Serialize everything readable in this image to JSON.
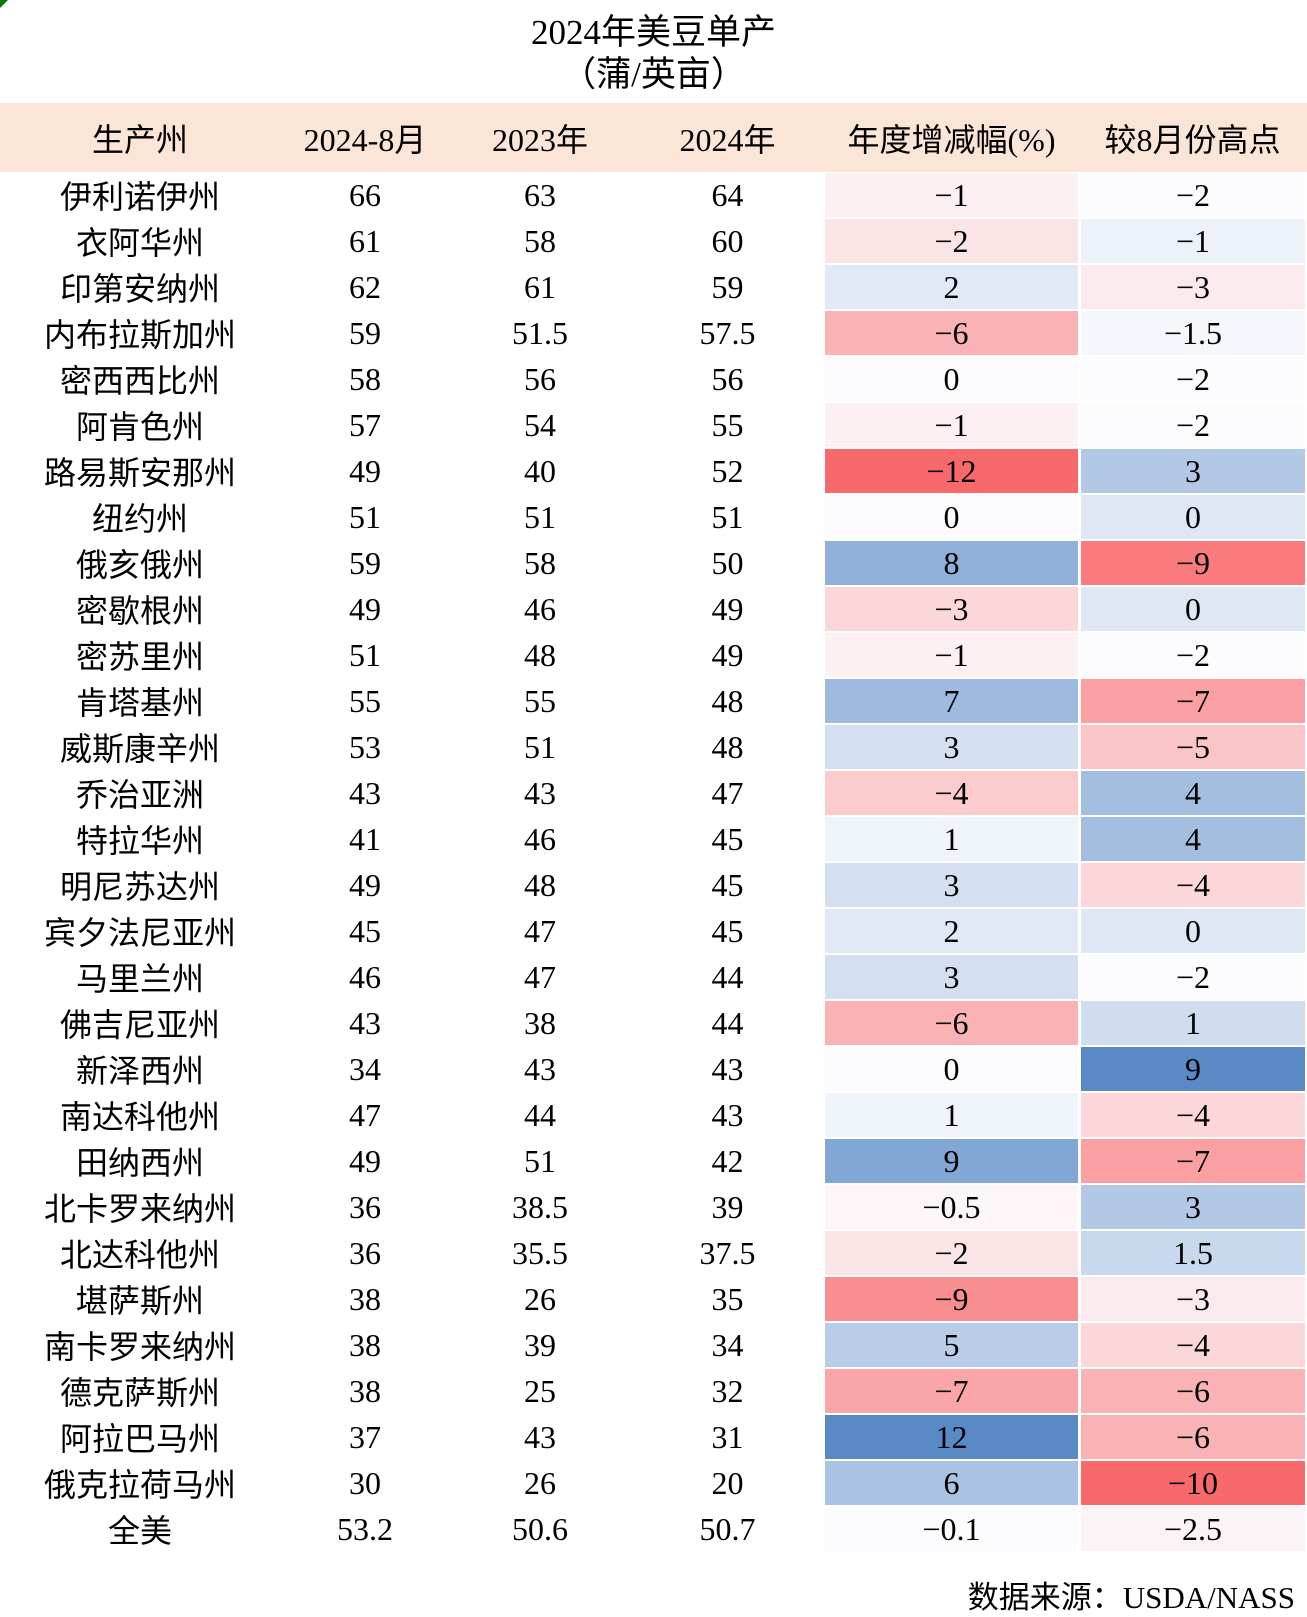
{
  "colors": {
    "header_bg": "#FBE5D6",
    "corner_marker": "#007B00",
    "text": "#000000",
    "scale_negative_max": "#F8696B",
    "scale_midpoint": "#FCFCFF",
    "scale_positive_max": "#5A8AC6"
  },
  "chart_data": {
    "type": "table",
    "title": "2024年美豆单产",
    "subtitle": "（蒲/英亩）",
    "columns": [
      "生产州",
      "2024-8月",
      "2023年",
      "2024年",
      "年度增减幅(%)",
      "较8月份高点"
    ],
    "rows": [
      {
        "state": "伊利诺伊州",
        "aug_2024": "66",
        "y2023": "63",
        "y2024": "64",
        "yoy_pct": "-1",
        "yoy_bg": "#FCF0F3",
        "vs_aug_high": "-2",
        "vs_bg": "#FCFCFF"
      },
      {
        "state": "衣阿华州",
        "aug_2024": "61",
        "y2023": "58",
        "y2024": "60",
        "yoy_pct": "-2",
        "yoy_bg": "#FBE4E6",
        "vs_aug_high": "-1",
        "vs_bg": "#EDF2FA"
      },
      {
        "state": "印第安纳州",
        "aug_2024": "62",
        "y2023": "61",
        "y2024": "59",
        "yoy_pct": "2",
        "yoy_bg": "#E1E9F6",
        "vs_aug_high": "-3",
        "vs_bg": "#FBEAED"
      },
      {
        "state": "内布拉斯加州",
        "aug_2024": "59",
        "y2023": "51.5",
        "y2024": "57.5",
        "yoy_pct": "-6",
        "yoy_bg": "#FAB3B5",
        "vs_aug_high": "-1.5",
        "vs_bg": "#F5F7FC"
      },
      {
        "state": "密西西比州",
        "aug_2024": "58",
        "y2023": "56",
        "y2024": "56",
        "yoy_pct": "0",
        "yoy_bg": "#FCFCFF",
        "vs_aug_high": "-2",
        "vs_bg": "#FCFCFF"
      },
      {
        "state": "阿肯色州",
        "aug_2024": "57",
        "y2023": "54",
        "y2024": "55",
        "yoy_pct": "-1",
        "yoy_bg": "#FCF0F3",
        "vs_aug_high": "-2",
        "vs_bg": "#FCFCFF"
      },
      {
        "state": "路易斯安那州",
        "aug_2024": "49",
        "y2023": "40",
        "y2024": "52",
        "yoy_pct": "-12",
        "yoy_bg": "#F8696B",
        "vs_aug_high": "3",
        "vs_bg": "#B2C8E5"
      },
      {
        "state": "纽约州",
        "aug_2024": "51",
        "y2023": "51",
        "y2024": "51",
        "yoy_pct": "0",
        "yoy_bg": "#FCFCFF",
        "vs_aug_high": "0",
        "vs_bg": "#DFE7F5"
      },
      {
        "state": "俄亥俄州",
        "aug_2024": "59",
        "y2023": "58",
        "y2024": "50",
        "yoy_pct": "8",
        "yoy_bg": "#90B0D9",
        "vs_aug_high": "-9",
        "vs_bg": "#F97B7E"
      },
      {
        "state": "密歇根州",
        "aug_2024": "49",
        "y2023": "46",
        "y2024": "49",
        "yoy_pct": "-3",
        "yoy_bg": "#FBD7DA",
        "vs_aug_high": "0",
        "vs_bg": "#DFE7F5"
      },
      {
        "state": "密苏里州",
        "aug_2024": "51",
        "y2023": "48",
        "y2024": "49",
        "yoy_pct": "-1",
        "yoy_bg": "#FCF0F3",
        "vs_aug_high": "-2",
        "vs_bg": "#FCFCFF"
      },
      {
        "state": "肯塔基州",
        "aug_2024": "55",
        "y2023": "55",
        "y2024": "48",
        "yoy_pct": "7",
        "yoy_bg": "#9EBADE",
        "vs_aug_high": "-7",
        "vs_bg": "#FAA0A3"
      },
      {
        "state": "威斯康辛州",
        "aug_2024": "53",
        "y2023": "51",
        "y2024": "48",
        "yoy_pct": "3",
        "yoy_bg": "#D4E0F1",
        "vs_aug_high": "-5",
        "vs_bg": "#FBC5C8"
      },
      {
        "state": "乔治亚洲",
        "aug_2024": "43",
        "y2023": "43",
        "y2024": "47",
        "yoy_pct": "-4",
        "yoy_bg": "#FBCBCE",
        "vs_aug_high": "4",
        "vs_bg": "#A4BEE0"
      },
      {
        "state": "特拉华州",
        "aug_2024": "41",
        "y2023": "46",
        "y2024": "45",
        "yoy_pct": "1",
        "yoy_bg": "#EFF3FA",
        "vs_aug_high": "4",
        "vs_bg": "#A4BEE0"
      },
      {
        "state": "明尼苏达州",
        "aug_2024": "49",
        "y2023": "48",
        "y2024": "45",
        "yoy_pct": "3",
        "yoy_bg": "#D4E0F1",
        "vs_aug_high": "-4",
        "vs_bg": "#FBD7DA"
      },
      {
        "state": "宾夕法尼亚州",
        "aug_2024": "45",
        "y2023": "47",
        "y2024": "45",
        "yoy_pct": "2",
        "yoy_bg": "#E1E9F6",
        "vs_aug_high": "0",
        "vs_bg": "#DFE7F5"
      },
      {
        "state": "马里兰州",
        "aug_2024": "46",
        "y2023": "47",
        "y2024": "44",
        "yoy_pct": "3",
        "yoy_bg": "#D4E0F1",
        "vs_aug_high": "-2",
        "vs_bg": "#FCFCFF"
      },
      {
        "state": "佛吉尼亚州",
        "aug_2024": "43",
        "y2023": "38",
        "y2024": "44",
        "yoy_pct": "-6",
        "yoy_bg": "#FAB3B5",
        "vs_aug_high": "1",
        "vs_bg": "#D0DDEF"
      },
      {
        "state": "新泽西州",
        "aug_2024": "34",
        "y2023": "43",
        "y2024": "43",
        "yoy_pct": "0",
        "yoy_bg": "#FCFCFF",
        "vs_aug_high": "9",
        "vs_bg": "#5A8AC6"
      },
      {
        "state": "南达科他州",
        "aug_2024": "47",
        "y2023": "44",
        "y2024": "43",
        "yoy_pct": "1",
        "yoy_bg": "#EFF3FA",
        "vs_aug_high": "-4",
        "vs_bg": "#FBD7DA"
      },
      {
        "state": "田纳西州",
        "aug_2024": "49",
        "y2023": "51",
        "y2024": "42",
        "yoy_pct": "9",
        "yoy_bg": "#83A7D4",
        "vs_aug_high": "-7",
        "vs_bg": "#FAA0A3"
      },
      {
        "state": "北卡罗来纳州",
        "aug_2024": "36",
        "y2023": "38.5",
        "y2024": "39",
        "yoy_pct": "-0.5",
        "yoy_bg": "#FCF6F9",
        "vs_aug_high": "3",
        "vs_bg": "#B2C8E5"
      },
      {
        "state": "北达科他州",
        "aug_2024": "36",
        "y2023": "35.5",
        "y2024": "37.5",
        "yoy_pct": "-2",
        "yoy_bg": "#FBE4E6",
        "vs_aug_high": "1.5",
        "vs_bg": "#C8D8ED"
      },
      {
        "state": "堪萨斯州",
        "aug_2024": "38",
        "y2023": "26",
        "y2024": "35",
        "yoy_pct": "-9",
        "yoy_bg": "#F98E90",
        "vs_aug_high": "-3",
        "vs_bg": "#FBEAED"
      },
      {
        "state": "南卡罗来纳州",
        "aug_2024": "38",
        "y2023": "39",
        "y2024": "34",
        "yoy_pct": "5",
        "yoy_bg": "#B9CDE7",
        "vs_aug_high": "-4",
        "vs_bg": "#FBD7DA"
      },
      {
        "state": "德克萨斯州",
        "aug_2024": "38",
        "y2023": "25",
        "y2024": "32",
        "yoy_pct": "-7",
        "yoy_bg": "#FAA6A9",
        "vs_aug_high": "-6",
        "vs_bg": "#FAB3B5"
      },
      {
        "state": "阿拉巴马州",
        "aug_2024": "37",
        "y2023": "43",
        "y2024": "31",
        "yoy_pct": "12",
        "yoy_bg": "#5A8AC6",
        "vs_aug_high": "-6",
        "vs_bg": "#FAB3B5"
      },
      {
        "state": "俄克拉荷马州",
        "aug_2024": "30",
        "y2023": "26",
        "y2024": "20",
        "yoy_pct": "6",
        "yoy_bg": "#ABC3E3",
        "vs_aug_high": "-10",
        "vs_bg": "#F8696B"
      },
      {
        "state": "全美",
        "aug_2024": "53.2",
        "y2023": "50.6",
        "y2024": "50.7",
        "yoy_pct": "-0.1",
        "yoy_bg": "#FCFBFE",
        "vs_aug_high": "-2.5",
        "vs_bg": "#FCF3F6"
      }
    ],
    "source": "数据来源：USDA/NASS"
  }
}
